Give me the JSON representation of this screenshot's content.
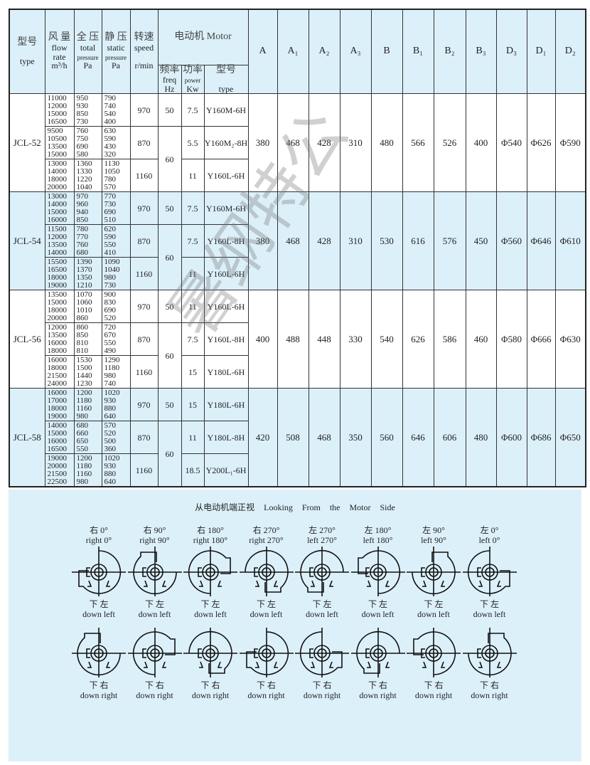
{
  "header": {
    "type": {
      "cn": "型号",
      "en": "type"
    },
    "flow": {
      "cn": "风 量",
      "en1": "flow",
      "en2": "rate",
      "unit": "m³/h"
    },
    "total": {
      "cn": "全 压",
      "en1": "total",
      "en2": "pressure",
      "unit": "Pa"
    },
    "static": {
      "cn": "静 压",
      "en1": "static",
      "en2": "pressure",
      "unit": "Pa"
    },
    "speed": {
      "cn": "转速",
      "en": "speed",
      "unit": "r/min"
    },
    "motor": {
      "title": "电动机 Motor",
      "freq_cn": "频率",
      "freq_en": "freq",
      "freq_unit": "Hz",
      "power_cn": "功率",
      "power_en": "power",
      "power_unit": "Kw",
      "type_cn": "型号",
      "type_en": "type"
    },
    "dims": [
      "A",
      "A₁",
      "A₂",
      "A₃",
      "B",
      "B₁",
      "B₂",
      "B₃",
      "D₃",
      "D₁",
      "D₂"
    ]
  },
  "groups": [
    {
      "model": "JCL-52",
      "highlight": false,
      "dims": [
        "380",
        "468",
        "428",
        "310",
        "480",
        "566",
        "526",
        "400",
        "Φ540",
        "Φ626",
        "Φ590"
      ],
      "rows": [
        {
          "flow": [
            "11000",
            "12000",
            "15000",
            "16500"
          ],
          "total": [
            "950",
            "930",
            "850",
            "730"
          ],
          "static": [
            "790",
            "740",
            "540",
            "400"
          ],
          "speed": "970",
          "freq": "50",
          "power": "7.5",
          "motor": "Y160M-6H"
        },
        {
          "flow": [
            "9500",
            "10500",
            "13500",
            "15000"
          ],
          "total": [
            "760",
            "750",
            "690",
            "580"
          ],
          "static": [
            "630",
            "590",
            "430",
            "320"
          ],
          "speed": "870",
          "freq": "60",
          "power": "5.5",
          "motor": "Y160M₂-8H"
        },
        {
          "flow": [
            "13000",
            "14000",
            "18000",
            "20000"
          ],
          "total": [
            "1360",
            "1330",
            "1220",
            "1040"
          ],
          "static": [
            "1130",
            "1050",
            "780",
            "570"
          ],
          "speed": "1160",
          "power": "11",
          "motor": "Y160L-6H"
        }
      ]
    },
    {
      "model": "JCL-54",
      "highlight": true,
      "dims": [
        "380",
        "468",
        "428",
        "310",
        "530",
        "616",
        "576",
        "450",
        "Φ560",
        "Φ646",
        "Φ610"
      ],
      "rows": [
        {
          "flow": [
            "13000",
            "14000",
            "15000",
            "16000"
          ],
          "total": [
            "970",
            "960",
            "940",
            "850"
          ],
          "static": [
            "770",
            "730",
            "690",
            "510"
          ],
          "speed": "970",
          "freq": "50",
          "power": "7.5",
          "motor": "Y160M-6H"
        },
        {
          "flow": [
            "11500",
            "12000",
            "13500",
            "14000"
          ],
          "total": [
            "780",
            "770",
            "760",
            "680"
          ],
          "static": [
            "620",
            "590",
            "550",
            "410"
          ],
          "speed": "870",
          "freq": "60",
          "power": "7.5",
          "motor": "Y160L-8H"
        },
        {
          "flow": [
            "15500",
            "16500",
            "18000",
            "19000"
          ],
          "total": [
            "1390",
            "1370",
            "1350",
            "1210"
          ],
          "static": [
            "1090",
            "1040",
            "980",
            "730"
          ],
          "speed": "1160",
          "power": "11",
          "motor": "Y160L-6H"
        }
      ]
    },
    {
      "model": "JCL-56",
      "highlight": false,
      "dims": [
        "400",
        "488",
        "448",
        "330",
        "540",
        "626",
        "586",
        "460",
        "Φ580",
        "Φ666",
        "Φ630"
      ],
      "rows": [
        {
          "flow": [
            "13500",
            "15000",
            "18000",
            "20000"
          ],
          "total": [
            "1070",
            "1060",
            "1010",
            "860"
          ],
          "static": [
            "900",
            "830",
            "690",
            "520"
          ],
          "speed": "970",
          "freq": "50",
          "power": "11",
          "motor": "Y160L-6H"
        },
        {
          "flow": [
            "12000",
            "13500",
            "16000",
            "18000"
          ],
          "total": [
            "860",
            "850",
            "810",
            "810"
          ],
          "static": [
            "720",
            "670",
            "550",
            "490"
          ],
          "speed": "870",
          "freq": "60",
          "power": "7.5",
          "motor": "Y160L-8H"
        },
        {
          "flow": [
            "16000",
            "18000",
            "21500",
            "24000"
          ],
          "total": [
            "1530",
            "1500",
            "1440",
            "1230"
          ],
          "static": [
            "1290",
            "1180",
            "980",
            "740"
          ],
          "speed": "1160",
          "power": "15",
          "motor": "Y180L-6H"
        }
      ]
    },
    {
      "model": "JCL-58",
      "highlight": true,
      "dims": [
        "420",
        "508",
        "468",
        "350",
        "560",
        "646",
        "606",
        "480",
        "Φ600",
        "Φ686",
        "Φ650"
      ],
      "rows": [
        {
          "flow": [
            "16000",
            "17000",
            "18000",
            "19000"
          ],
          "total": [
            "1200",
            "1180",
            "1160",
            "980"
          ],
          "static": [
            "1020",
            "930",
            "880",
            "640"
          ],
          "speed": "970",
          "freq": "50",
          "power": "15",
          "motor": "Y180L-6H"
        },
        {
          "flow": [
            "14000",
            "15000",
            "16000",
            "16500"
          ],
          "total": [
            "680",
            "660",
            "650",
            "550"
          ],
          "static": [
            "570",
            "520",
            "500",
            "360"
          ],
          "speed": "870",
          "freq": "60",
          "power": "11",
          "motor": "Y180L-8H"
        },
        {
          "flow": [
            "19000",
            "20000",
            "21500",
            "22500"
          ],
          "total": [
            "1200",
            "1180",
            "1160",
            "980"
          ],
          "static": [
            "1020",
            "930",
            "880",
            "640"
          ],
          "speed": "1160",
          "power": "18.5",
          "motor": "Y200L₁-6H"
        }
      ]
    }
  ],
  "diagrams": {
    "title": "从电动机端正视 Looking From the Motor Side",
    "top": [
      {
        "cn": "右 0°",
        "en": "right 0°",
        "dir": "right",
        "angle": 0
      },
      {
        "cn": "右 90°",
        "en": "right 90°",
        "dir": "right",
        "angle": 90
      },
      {
        "cn": "右 180°",
        "en": "right 180°",
        "dir": "right",
        "angle": 180
      },
      {
        "cn": "右 270°",
        "en": "right 270°",
        "dir": "right",
        "angle": 270
      },
      {
        "cn": "左 270°",
        "en": "left 270°",
        "dir": "left",
        "angle": 270
      },
      {
        "cn": "左 180°",
        "en": "left 180°",
        "dir": "left",
        "angle": 180
      },
      {
        "cn": "左 90°",
        "en": "left 90°",
        "dir": "left",
        "angle": 90
      },
      {
        "cn": "左 0°",
        "en": "left 0°",
        "dir": "left",
        "angle": 0
      }
    ],
    "row1_label": {
      "cn": "下 左",
      "en": "down left"
    },
    "row2_label": {
      "cn": "下 右",
      "en": "down right"
    },
    "watermark": "暑纲特公"
  }
}
